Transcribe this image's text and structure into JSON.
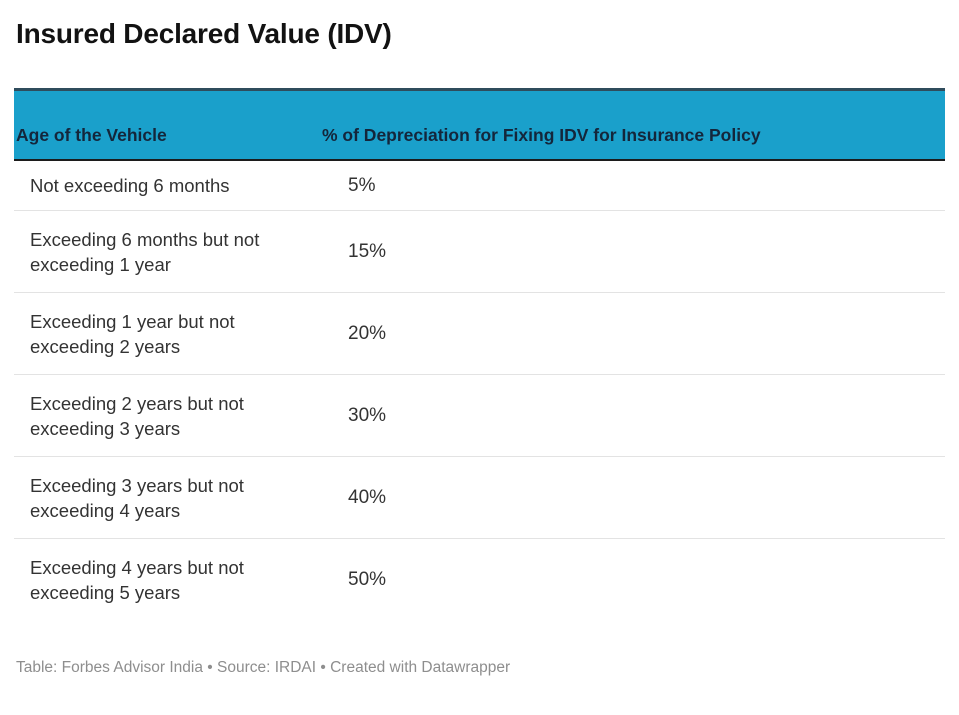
{
  "title": "Insured Declared Value (IDV)",
  "chart_data": {
    "type": "table",
    "title": "Insured Declared Value (IDV)",
    "columns": [
      "Age of the Vehicle",
      "% of Depreciation for Fixing IDV for Insurance Policy"
    ],
    "rows": [
      [
        "Not exceeding 6 months",
        "5%"
      ],
      [
        "Exceeding 6 months but not exceeding 1 year",
        "15%"
      ],
      [
        "Exceeding 1 year but not exceeding 2 years",
        "20%"
      ],
      [
        "Exceeding 2 years but not exceeding 3 years",
        "30%"
      ],
      [
        "Exceeding 3 years but not exceeding 4 years",
        "40%"
      ],
      [
        "Exceeding 4 years but not exceeding 5 years",
        "50%"
      ]
    ],
    "depreciation_percent_values": [
      5,
      15,
      20,
      30,
      40,
      50
    ],
    "legend_position": "none",
    "grid": "row-dividers-only"
  },
  "footer": "Table: Forbes Advisor India • Source: IRDAI • Created with Datawrapper",
  "colors": {
    "header_background": "#1AA0CB",
    "header_text": "#14263B",
    "header_top_border": "#2F4C5C",
    "header_bottom_border": "#1C1C1C",
    "row_divider": "#E3E3E3",
    "body_text": "#333333",
    "title_text": "#121212",
    "footer_text": "#8E8E8E",
    "background": "#FFFFFF"
  }
}
